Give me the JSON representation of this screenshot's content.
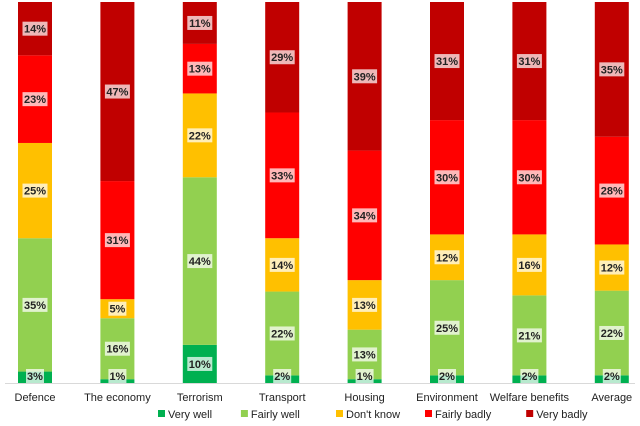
{
  "chart_data": {
    "type": "bar",
    "stacked": true,
    "percent_stacked": true,
    "categories": [
      "Defence",
      "The economy",
      "Terrorism",
      "Transport",
      "Housing",
      "Environment",
      "Welfare benefits",
      "Average"
    ],
    "series": [
      {
        "name": "Very well",
        "color": "#00b050",
        "values": [
          3,
          1,
          10,
          2,
          1,
          2,
          2,
          2
        ]
      },
      {
        "name": "Fairly well",
        "color": "#92d050",
        "values": [
          35,
          16,
          44,
          22,
          13,
          25,
          21,
          22
        ]
      },
      {
        "name": "Don't know",
        "color": "#ffc000",
        "values": [
          25,
          5,
          22,
          14,
          13,
          12,
          16,
          12
        ]
      },
      {
        "name": "Fairly badly",
        "color": "#ff0000",
        "values": [
          23,
          31,
          13,
          33,
          34,
          30,
          30,
          28
        ]
      },
      {
        "name": "Very badly",
        "color": "#c00000",
        "values": [
          14,
          47,
          11,
          29,
          39,
          31,
          31,
          35
        ]
      }
    ],
    "value_suffix": "%",
    "ylim": [
      0,
      100
    ],
    "legend": "bottom",
    "grid": false
  }
}
